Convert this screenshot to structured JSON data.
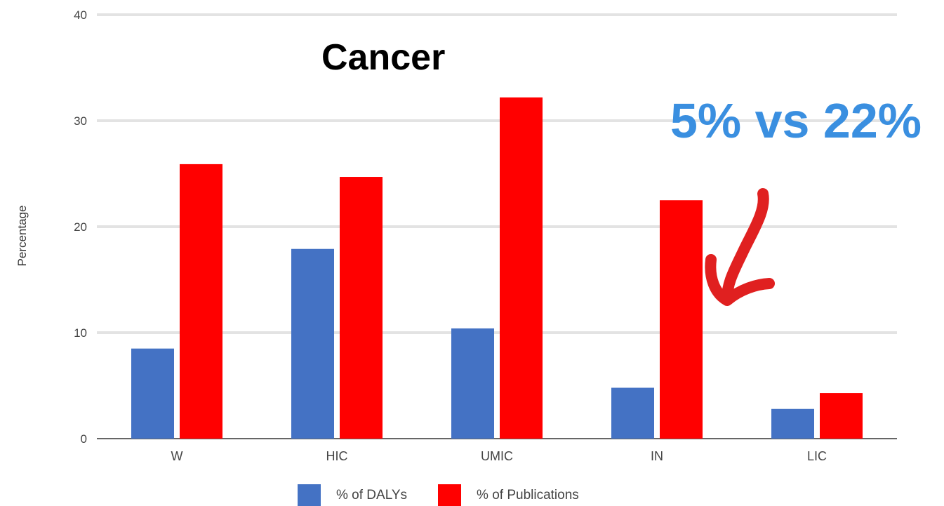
{
  "chart_data": {
    "type": "bar",
    "title": "Cancer",
    "annotation": "5% vs 22%",
    "ylabel": "Percentage",
    "xlabel": "",
    "categories": [
      "W",
      "HIC",
      "UMIC",
      "IN",
      "LIC"
    ],
    "series": [
      {
        "name": "% of DALYs",
        "color": "#4472c4",
        "values": [
          8.5,
          17.9,
          10.4,
          4.8,
          2.8
        ]
      },
      {
        "name": "% of Publications",
        "color": "#ff0000",
        "values": [
          25.9,
          24.7,
          32.2,
          22.5,
          4.3
        ]
      }
    ],
    "yticks": [
      0,
      10,
      20,
      30,
      40
    ],
    "ylim": [
      0,
      40
    ],
    "grid": true,
    "legend_position": "bottom",
    "arrow_color": "#e02020"
  }
}
